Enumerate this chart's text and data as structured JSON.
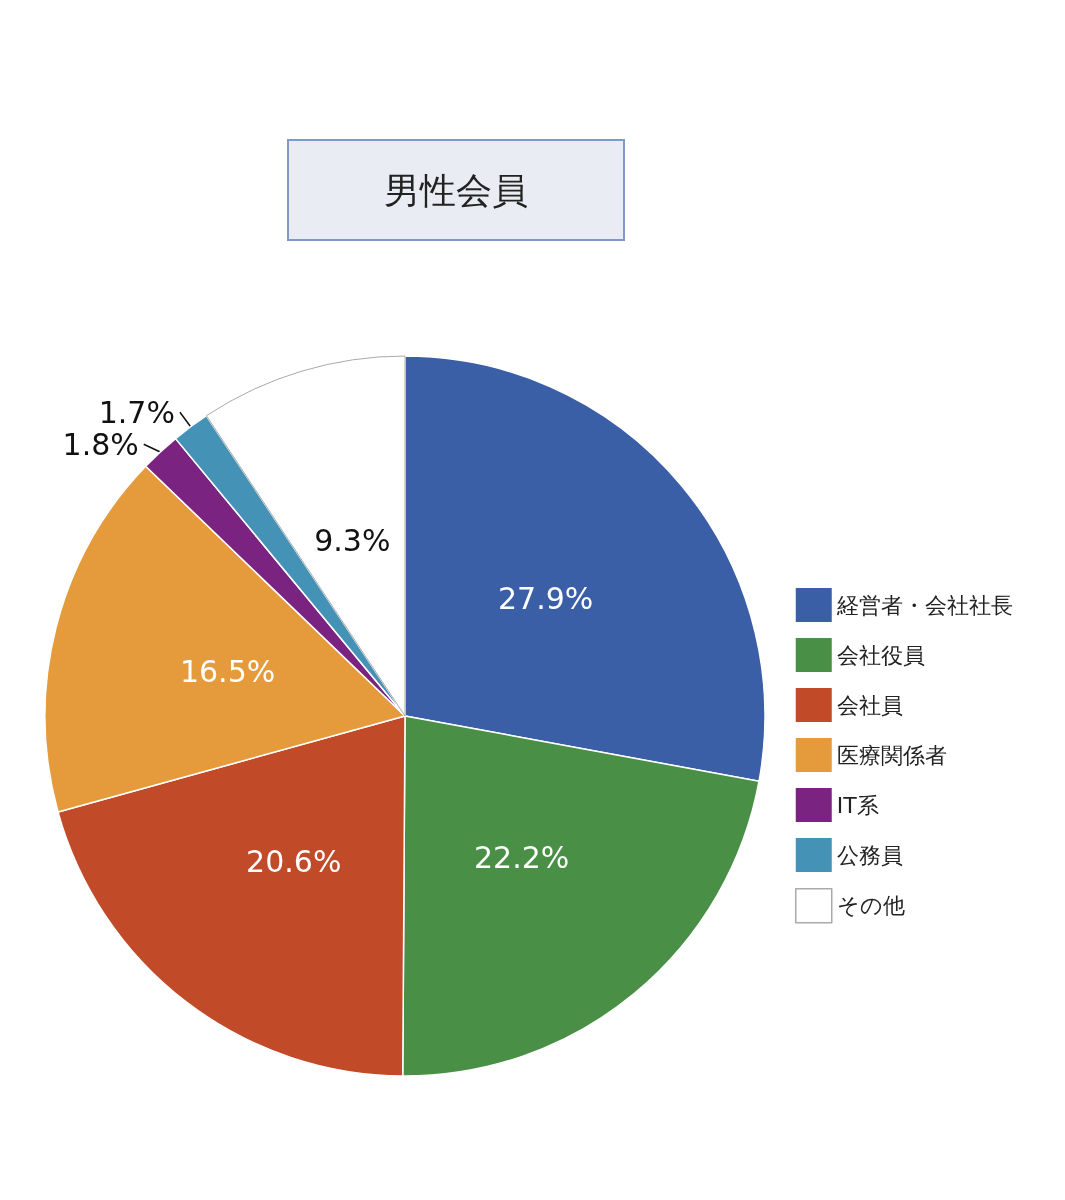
{
  "chart_data": {
    "type": "pie",
    "title": "男性会員",
    "categories": [
      "経営者・会社社長",
      "会社役員",
      "会社員",
      "医療関係者",
      "IT系",
      "公務員",
      "その他"
    ],
    "values": [
      27.9,
      22.2,
      20.6,
      16.5,
      1.8,
      1.7,
      9.3
    ],
    "colors": [
      "#3b5fa7",
      "#4a8f46",
      "#c14a29",
      "#e59b3c",
      "#7b2381",
      "#4592b7",
      "#ffffff"
    ],
    "value_labels": [
      "27.9%",
      "22.2%",
      "20.6%",
      "16.5%",
      "1.8%",
      "1.7%",
      "9.3%"
    ],
    "legend": "right"
  }
}
